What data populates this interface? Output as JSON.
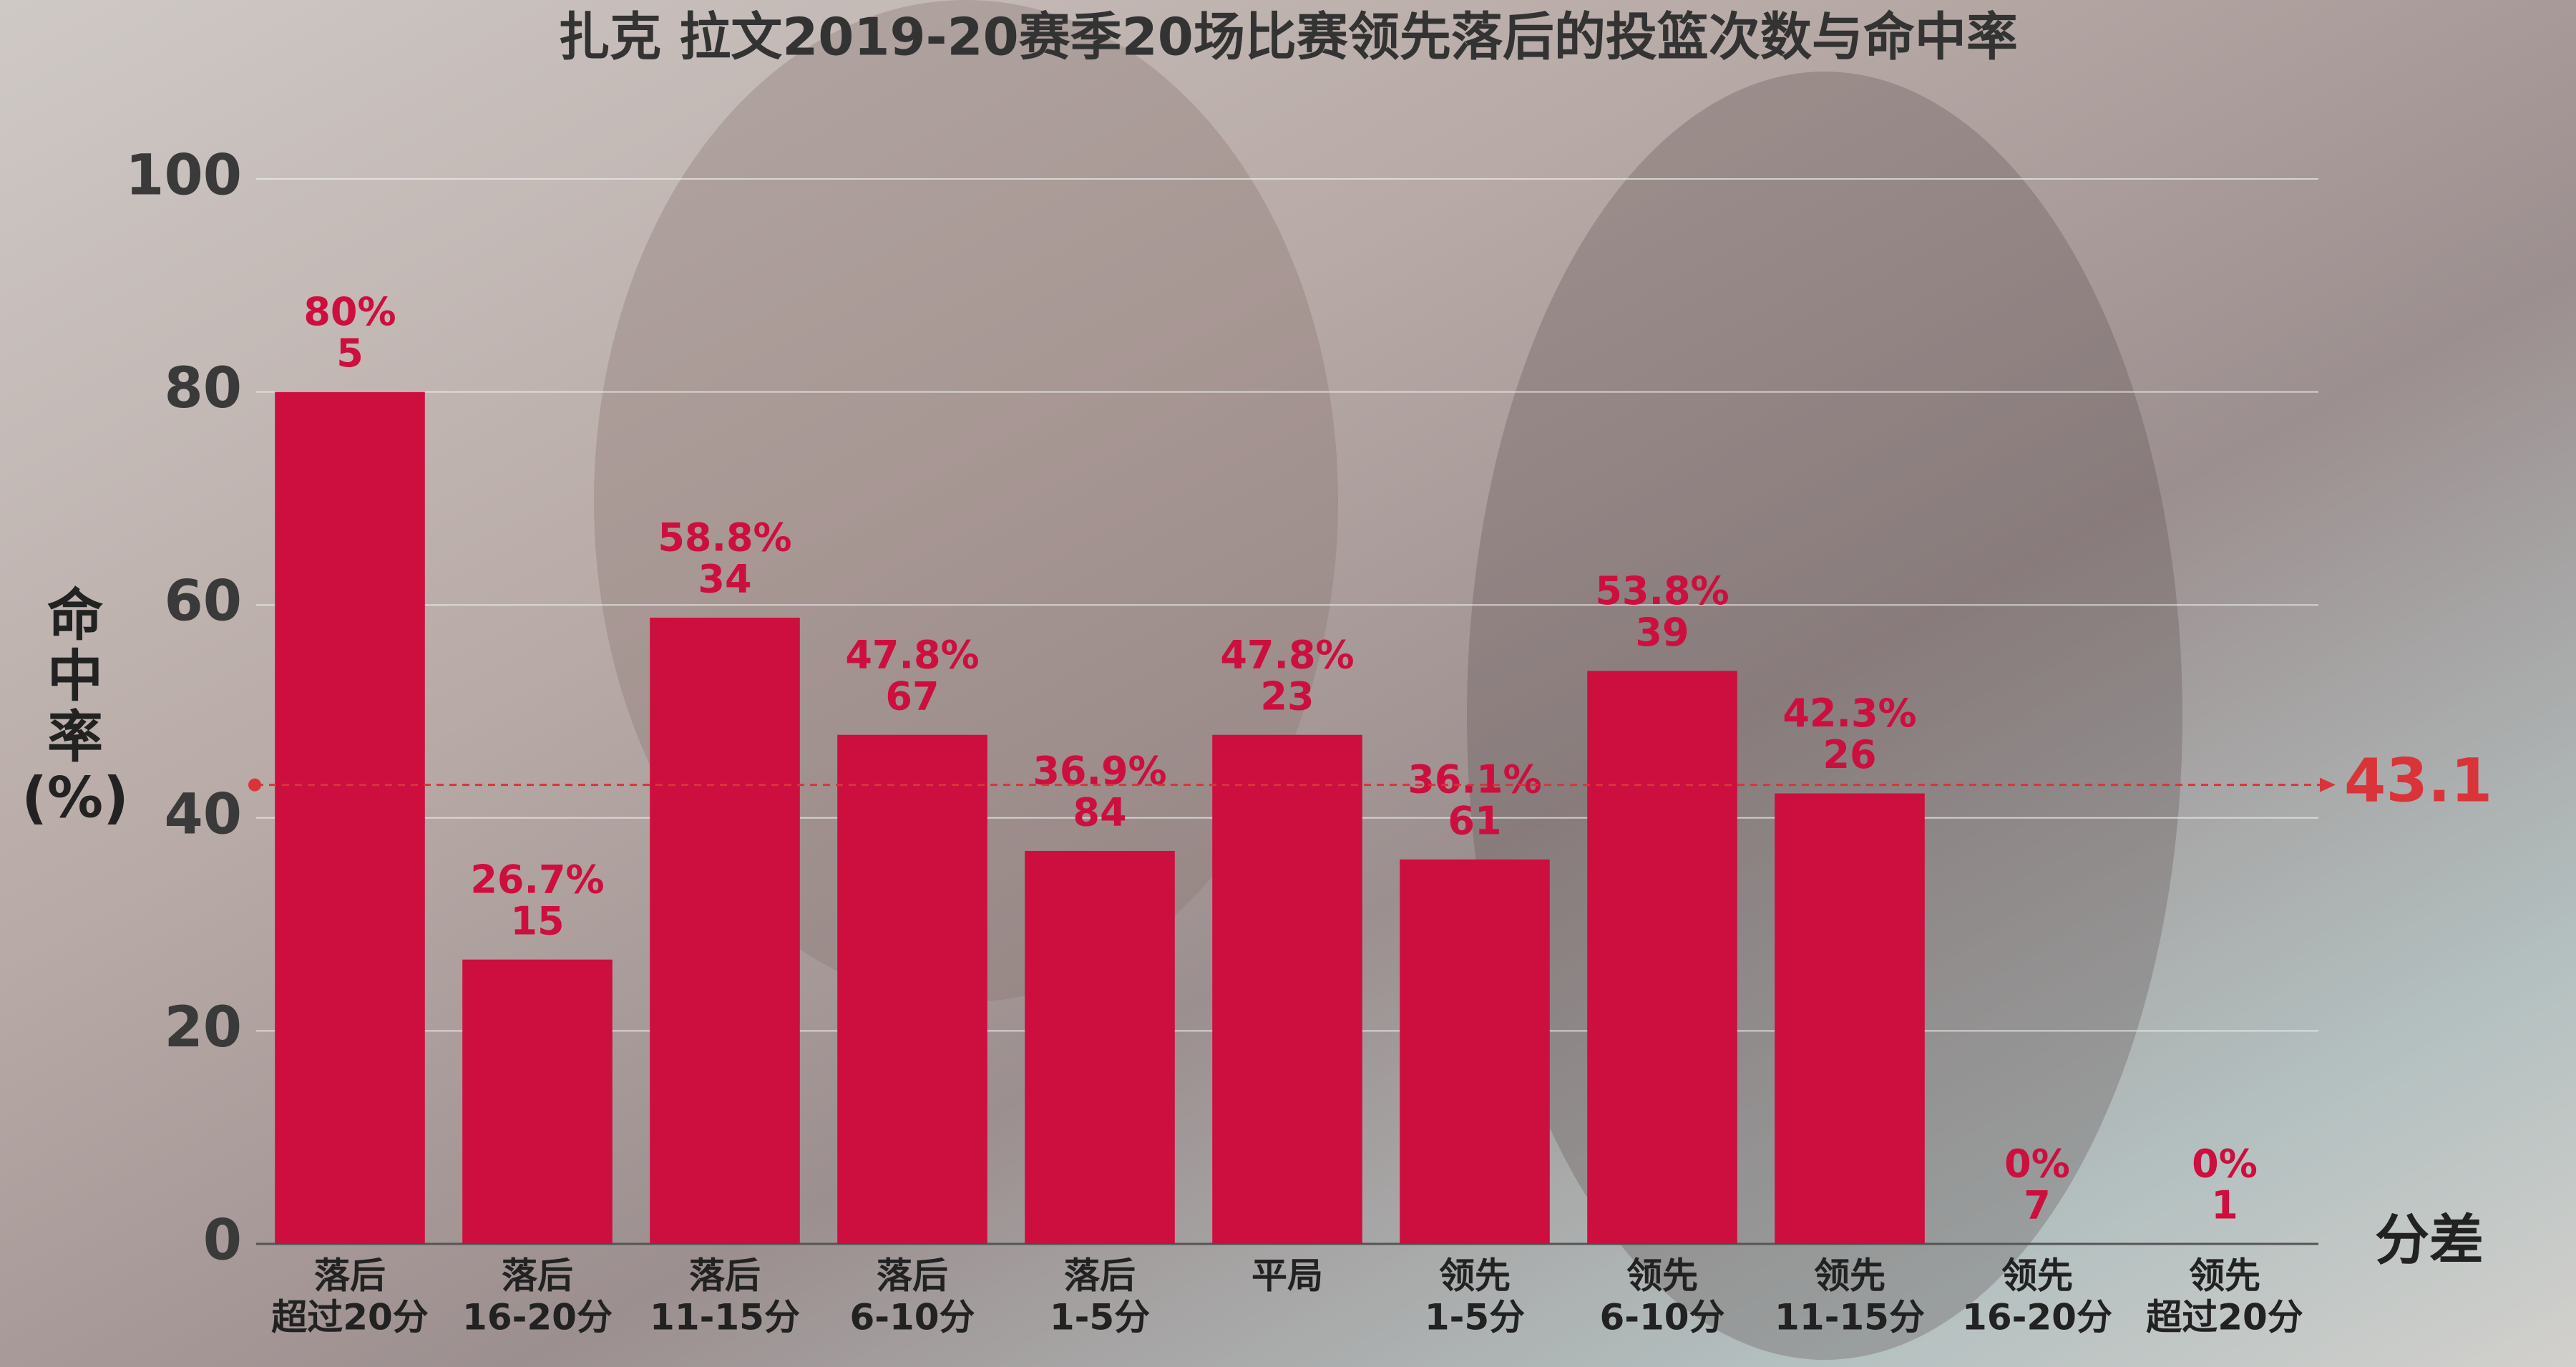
{
  "chart_data": {
    "type": "bar",
    "title": "扎克 拉文2019-20赛季20场比赛领先落后的投篮次数与命中率",
    "ylabel": [
      "命",
      "中",
      "率",
      "(%)"
    ],
    "xlabel": "分差",
    "categories": [
      [
        "落后",
        "超过20分"
      ],
      [
        "落后",
        "16-20分"
      ],
      [
        "落后",
        "11-15分"
      ],
      [
        "落后",
        "6-10分"
      ],
      [
        "落后",
        "1-5分"
      ],
      [
        "平局"
      ],
      [
        "领先",
        "1-5分"
      ],
      [
        "领先",
        "6-10分"
      ],
      [
        "领先",
        "11-15分"
      ],
      [
        "领先",
        "16-20分"
      ],
      [
        "领先",
        "超过20分"
      ]
    ],
    "values": [
      80,
      26.7,
      58.8,
      47.8,
      36.9,
      47.8,
      36.1,
      53.8,
      42.3,
      0,
      0
    ],
    "value_labels": [
      "80%",
      "26.7%",
      "58.8%",
      "47.8%",
      "36.9%",
      "47.8%",
      "36.1%",
      "53.8%",
      "42.3%",
      "0%",
      "0%"
    ],
    "counts": [
      5,
      15,
      34,
      67,
      84,
      23,
      61,
      39,
      26,
      7,
      1
    ],
    "color": "#cc0f3e",
    "reference_line": {
      "value": 43.1,
      "color": "#d8343a"
    },
    "ylim": [
      0,
      100
    ],
    "yticks": [
      0,
      20,
      40,
      60,
      80,
      100
    ],
    "grid": true
  }
}
